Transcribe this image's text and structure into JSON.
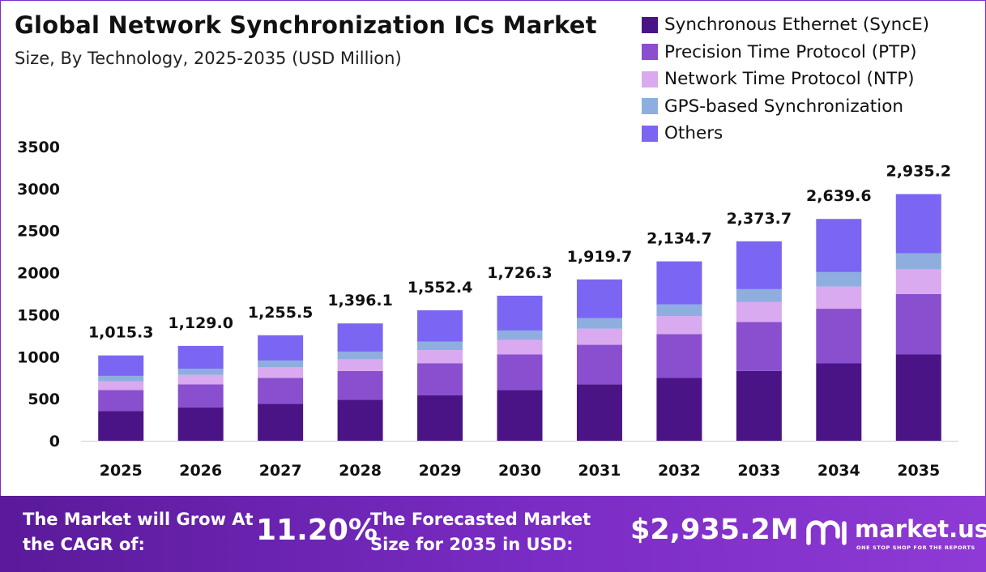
{
  "header": {
    "title": "Global Network Synchronization ICs Market",
    "subtitle": "Size, By Technology, 2025-2035 (USD Million)"
  },
  "colors": {
    "synce": "#4a1486",
    "ptp": "#8a4fcf",
    "ntp": "#d9aaef",
    "gps": "#8faee0",
    "others": "#7a66f2",
    "banner": "#6a24b0"
  },
  "chart_data": {
    "type": "bar",
    "stacked": true,
    "title": "Global Network Synchronization ICs Market",
    "subtitle": "Size, By Technology, 2025-2035 (USD Million)",
    "xlabel": "",
    "ylabel": "",
    "ylim": [
      0,
      3500
    ],
    "yticks": [
      0,
      500,
      1000,
      1500,
      2000,
      2500,
      3000,
      3500
    ],
    "ytick_labels": [
      "0",
      "500",
      "1000",
      "1500",
      "2000",
      "2500",
      "3000",
      "3500"
    ],
    "categories": [
      "2025",
      "2026",
      "2027",
      "2028",
      "2029",
      "2030",
      "2031",
      "2032",
      "2033",
      "2034",
      "2035"
    ],
    "totals": [
      1015.3,
      1129.0,
      1255.5,
      1396.1,
      1552.4,
      1726.3,
      1919.7,
      2134.7,
      2373.7,
      2639.6,
      2935.2
    ],
    "total_labels": [
      "1,015.3",
      "1,129.0",
      "1,255.5",
      "1,396.1",
      "1,552.4",
      "1,726.3",
      "1,919.7",
      "2,134.7",
      "2,373.7",
      "2,639.6",
      "2,935.2"
    ],
    "legend_position": "top-right",
    "series": [
      {
        "name": "Synchronous Ethernet (SyncE)",
        "color_key": "synce",
        "values": [
          355,
          395,
          440,
          488,
          543,
          604,
          672,
          747,
          831,
          924,
          1027
        ]
      },
      {
        "name": "Precision Time Protocol (PTP)",
        "color_key": "ptp",
        "values": [
          249,
          277,
          308,
          342,
          380,
          423,
          470,
          523,
          582,
          647,
          719
        ]
      },
      {
        "name": "Network Time Protocol (NTP)",
        "color_key": "ntp",
        "values": [
          102,
          113,
          126,
          140,
          155,
          173,
          192,
          213,
          237,
          264,
          294
        ]
      },
      {
        "name": "GPS-based Synchronization",
        "color_key": "gps",
        "values": [
          66,
          73,
          81,
          91,
          101,
          112,
          125,
          139,
          154,
          172,
          191
        ]
      },
      {
        "name": "Others",
        "color_key": "others",
        "values": [
          243.3,
          271.0,
          300.5,
          335.1,
          373.4,
          414.3,
          460.7,
          512.7,
          569.7,
          632.6,
          704.2
        ]
      }
    ]
  },
  "banner": {
    "cagr_label": "The Market will Grow At the CAGR of:",
    "cagr_value": "11.20%",
    "size_label": "The Forecasted Market Size for 2035 in USD:",
    "size_value": "$2,935.2M"
  },
  "brand": {
    "name": "market.us",
    "tagline": "ONE STOP SHOP FOR THE REPORTS",
    "logo_icon": "market-us-logo-icon"
  }
}
